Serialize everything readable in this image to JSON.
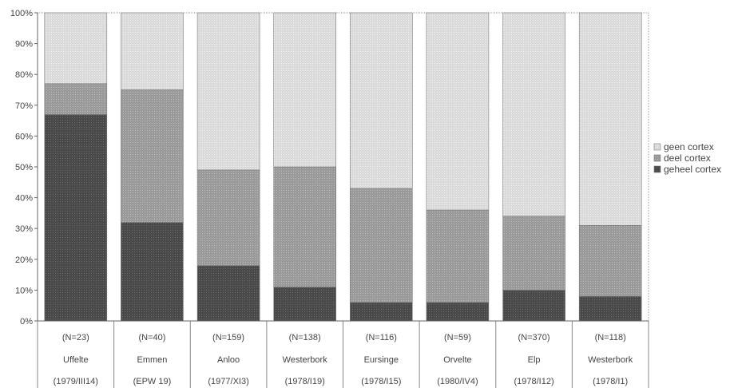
{
  "chart_data": {
    "type": "bar",
    "stacked": true,
    "percent": true,
    "categories": [
      [
        "(N=23)",
        "Uffelte",
        "(1979/III14)"
      ],
      [
        "(N=40)",
        "Emmen",
        "(EPW 19)"
      ],
      [
        "(N=159)",
        "Anloo",
        "(1977/XI3)"
      ],
      [
        "(N=138)",
        "Westerbork",
        "(1978/I19)"
      ],
      [
        "(N=116)",
        "Eursinge",
        "(1978/I15)"
      ],
      [
        "(N=59)",
        "Orvelte",
        "(1980/IV4)"
      ],
      [
        "(N=370)",
        "Elp",
        "(1978/I12)"
      ],
      [
        "(N=118)",
        "Westerbork",
        "(1978/I1)"
      ]
    ],
    "series": [
      {
        "name": "geheel cortex",
        "color": "#4a4a4a",
        "values": [
          67,
          32,
          18,
          11,
          6,
          6,
          10,
          8
        ]
      },
      {
        "name": "deel cortex",
        "color": "#9a9a9a",
        "values": [
          10,
          43,
          31,
          39,
          37,
          30,
          24,
          23
        ]
      },
      {
        "name": "geen cortex",
        "color": "#d9d9d9",
        "values": [
          23,
          25,
          51,
          50,
          57,
          64,
          66,
          69
        ]
      }
    ],
    "legend_order": [
      "geen cortex",
      "deel cortex",
      "geheel cortex"
    ],
    "ylim": [
      0,
      100
    ],
    "yticks": [
      "0%",
      "10%",
      "20%",
      "30%",
      "40%",
      "50%",
      "60%",
      "70%",
      "80%",
      "90%",
      "100%"
    ],
    "title": "",
    "xlabel": "",
    "ylabel": "",
    "legend_position": "right",
    "grid": false
  }
}
